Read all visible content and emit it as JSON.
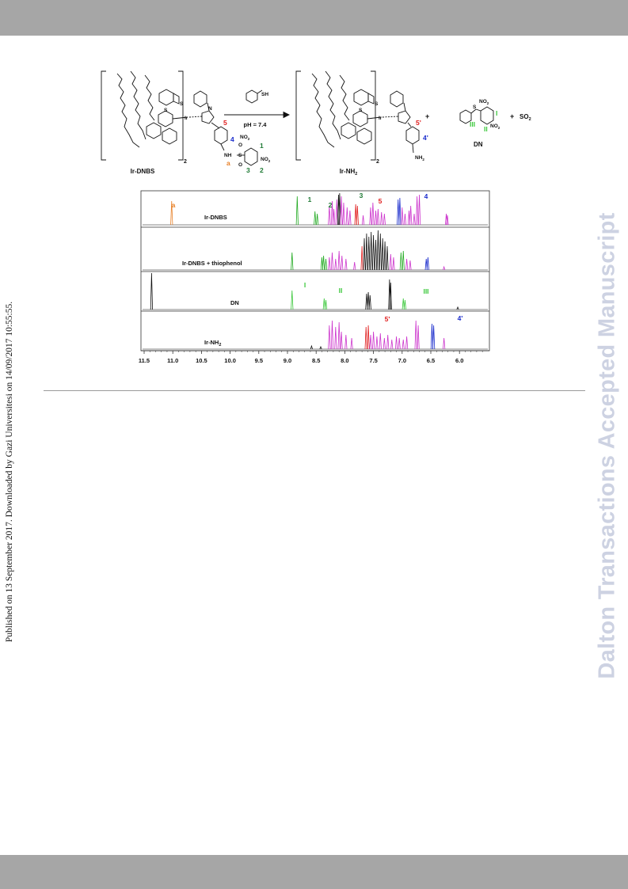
{
  "side_note": "Published on 13 September 2017. Downloaded by Gazi Universitesi on 14/09/2017 10:55:55.",
  "watermark": "Dalton Transactions Accepted Manuscript",
  "scheme": {
    "reactant_name": "Ir-DNBS",
    "product_name": "Ir-NH",
    "product_sub": "2",
    "arrow_condition": "pH = 7.4",
    "reagent_group": "SH",
    "plus": "+",
    "byproduct_name": "DN",
    "so2": "SO",
    "so2_sub": "2",
    "bracket_subscript": "2",
    "atoms": {
      "S": "S",
      "N": "N",
      "Ir": "Ir",
      "O": "O",
      "NH": "NH",
      "NH2": "NH",
      "NO2": "NO",
      "sub2": "2"
    },
    "labels_reactant": {
      "a": "a",
      "n1": "1",
      "n2": "2",
      "n3": "3",
      "n4": "4",
      "n5": "5"
    },
    "labels_product": {
      "n4p": "4'",
      "n5p": "5'"
    },
    "labels_dn": {
      "I": "I",
      "II": "II",
      "III": "III"
    },
    "colors": {
      "orange": "#e8822a",
      "green": "#1f7a35",
      "blue": "#1a2ccc",
      "red": "#e01d1d",
      "lightgreen": "#3cc83c"
    }
  },
  "spectra": {
    "x_ticks": [
      "11.5",
      "11.0",
      "10.5",
      "10.0",
      "9.5",
      "9.0",
      "8.5",
      "8.0",
      "7.5",
      "7.0",
      "6.5",
      "6.0"
    ],
    "panels": [
      {
        "label": "Ir-DNBS",
        "peak_labels": [
          "a",
          "1",
          "2",
          "3",
          "5",
          "4"
        ]
      },
      {
        "label": "Ir-DNBS + thiophenol",
        "peak_labels": []
      },
      {
        "label": "DN",
        "peak_labels": [
          "I",
          "II",
          "III"
        ]
      },
      {
        "label": "Ir-NH",
        "label_sub": "2",
        "peak_labels": [
          "5'",
          "4'"
        ]
      }
    ],
    "colors": {
      "magenta": "#cc33cc",
      "black": "#111111",
      "red": "#e01d1d",
      "green": "#22aa22",
      "blue": "#1a2ccc",
      "orange": "#e8822a",
      "lightgreen": "#3cc83c",
      "axis": "#333333"
    }
  }
}
